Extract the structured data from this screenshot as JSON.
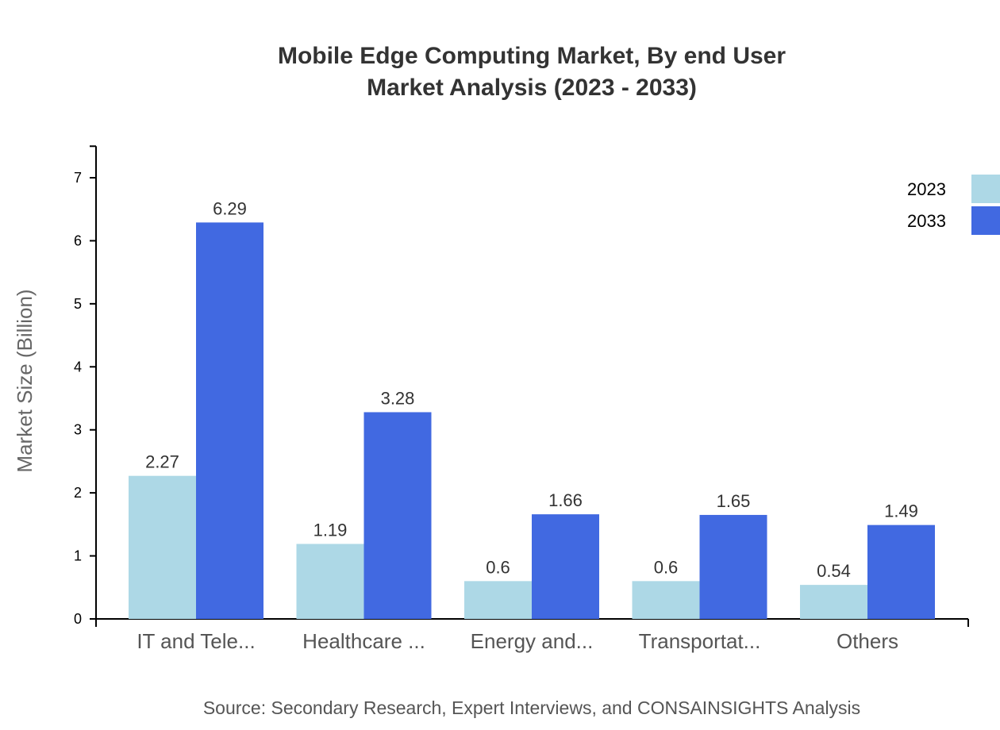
{
  "chart_data": {
    "type": "bar",
    "title": [
      "Mobile Edge Computing Market, By end User",
      "Market Analysis (2023 - 2033)"
    ],
    "ylabel": "Market Size (Billion)",
    "xlabel": "",
    "ylim": [
      0,
      7.5
    ],
    "yticks": [
      0,
      1,
      2,
      3,
      4,
      5,
      6,
      7
    ],
    "categories": [
      "IT and Tele...",
      "Healthcare ...",
      "Energy and...",
      "Transportat...",
      "Others"
    ],
    "series": [
      {
        "name": "2023",
        "color": "#add8e6",
        "values": [
          2.27,
          1.19,
          0.6,
          0.6,
          0.54
        ]
      },
      {
        "name": "2033",
        "color": "#4169e1",
        "values": [
          6.29,
          3.28,
          1.66,
          1.65,
          1.49
        ]
      }
    ],
    "legend_position": "top-right",
    "grid": false,
    "source": "Source: Secondary Research, Expert Interviews, and CONSAINSIGHTS Analysis"
  }
}
